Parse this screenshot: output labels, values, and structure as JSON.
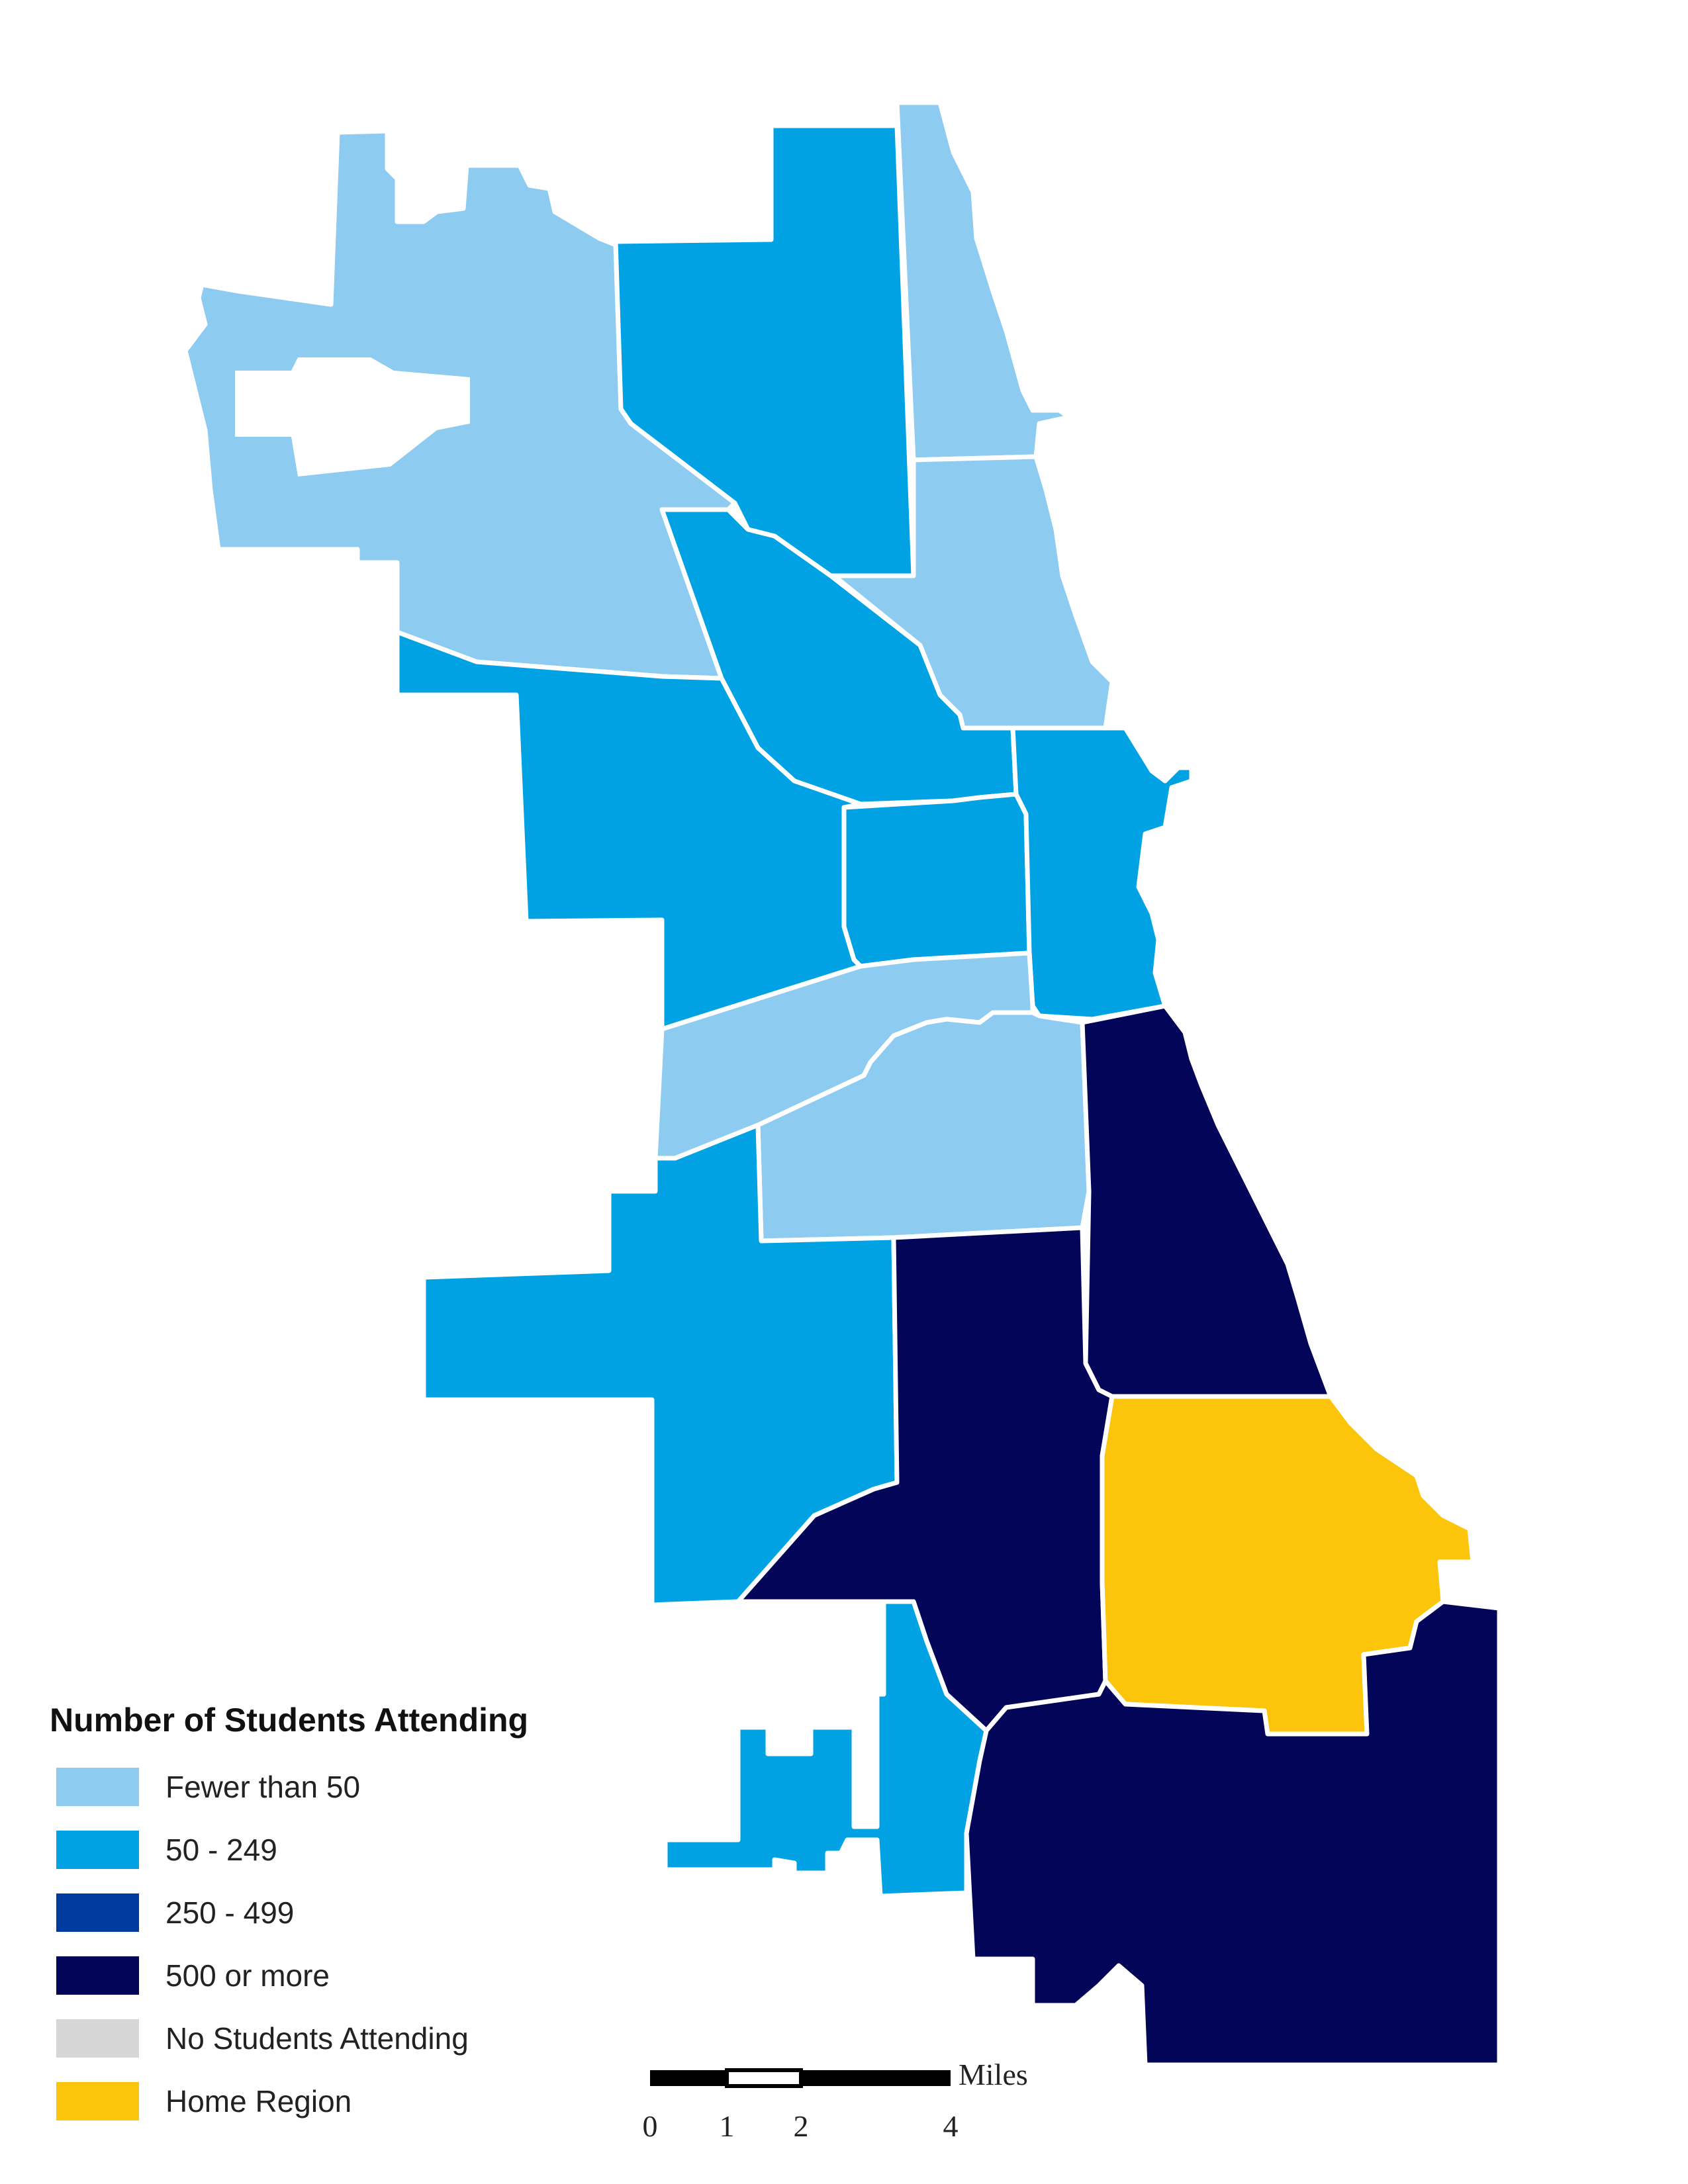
{
  "legend": {
    "title": "Number of Students Attending",
    "items": [
      {
        "label": "Fewer than 50",
        "color": "#8ecbf0"
      },
      {
        "label": "50 - 249",
        "color": "#00a2e3"
      },
      {
        "label": "250 - 499",
        "color": "#003c9f"
      },
      {
        "label": "500 or more",
        "color": "#030558"
      },
      {
        "label": "No Students Attending",
        "color": "#d6d6d6"
      },
      {
        "label": "Home Region",
        "color": "#fcc50b"
      }
    ]
  },
  "scale_bar": {
    "unit": "Miles",
    "ticks": [
      "0",
      "1",
      "2",
      "4"
    ]
  },
  "regions": [
    {
      "id": "far-northwest",
      "category": "Fewer than 50"
    },
    {
      "id": "north",
      "category": "50 - 249"
    },
    {
      "id": "far-north-lakefront",
      "category": "Fewer than 50"
    },
    {
      "id": "north-lakefront",
      "category": "Fewer than 50"
    },
    {
      "id": "north-central",
      "category": "50 - 249"
    },
    {
      "id": "northwest",
      "category": "50 - 249"
    },
    {
      "id": "west-central",
      "category": "50 - 249"
    },
    {
      "id": "central",
      "category": "50 - 249"
    },
    {
      "id": "near-southwest",
      "category": "Fewer than 50"
    },
    {
      "id": "south-central",
      "category": "Fewer than 50"
    },
    {
      "id": "southwest",
      "category": "50 - 249"
    },
    {
      "id": "south-side",
      "category": "500 or more"
    },
    {
      "id": "south-lakefront",
      "category": "500 or more"
    },
    {
      "id": "home-region",
      "category": "Home Region"
    },
    {
      "id": "far-south",
      "category": "500 or more"
    },
    {
      "id": "far-southwest",
      "category": "50 - 249"
    }
  ]
}
